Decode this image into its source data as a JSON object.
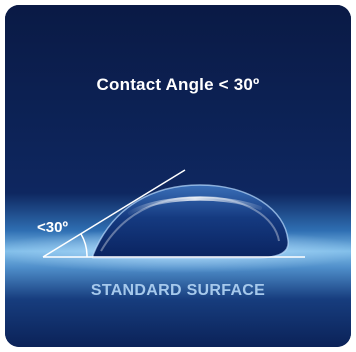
{
  "title": "Contact Angle < 30º",
  "angle_label": "<30º",
  "surface_label": "STANDARD SURFACE",
  "colors": {
    "background_top": "#0a1a45",
    "background_mid": "#0f2a63",
    "surface_glow": "#6aaee4",
    "surface_label": "#a6c9ec",
    "text": "#ffffff"
  }
}
